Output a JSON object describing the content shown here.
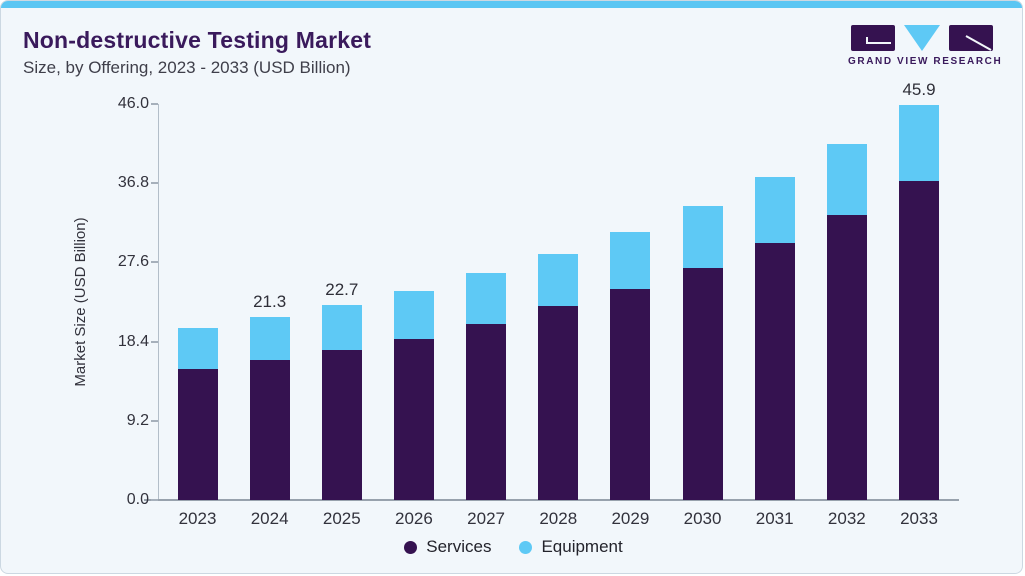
{
  "header": {
    "title": "Non-destructive Testing Market",
    "subtitle": "Size, by Offering, 2023 - 2033 (USD Billion)",
    "brand": "GRAND VIEW RESEARCH"
  },
  "colors": {
    "accent_blue": "#5bc6f3",
    "brand_purple": "#3a1a5c",
    "services_purple": "#351250",
    "equipment_blue": "#5ec9f5",
    "card_background": "#f2f7fb"
  },
  "chart_data": {
    "type": "bar",
    "stacked": true,
    "title": "Non-destructive Testing Market Size, by Offering, 2023 - 2033 (USD Billion)",
    "categories": [
      "2023",
      "2024",
      "2025",
      "2026",
      "2027",
      "2028",
      "2029",
      "2030",
      "2031",
      "2032",
      "2033"
    ],
    "series": [
      {
        "name": "Services",
        "color": "#351250",
        "values": [
          15.2,
          16.3,
          17.4,
          18.7,
          20.5,
          22.5,
          24.5,
          27.0,
          29.8,
          33.1,
          37.0
        ]
      },
      {
        "name": "Equipment",
        "color": "#5ec9f5",
        "values": [
          4.8,
          5.0,
          5.3,
          5.6,
          5.9,
          6.1,
          6.6,
          7.1,
          7.7,
          8.3,
          8.9
        ]
      }
    ],
    "totals": [
      20.0,
      21.3,
      22.7,
      24.3,
      26.4,
      28.6,
      31.1,
      34.1,
      37.5,
      41.4,
      45.9
    ],
    "bar_total_labels": [
      "",
      "21.3",
      "22.7",
      "",
      "",
      "",
      "",
      "",
      "",
      "",
      "45.9"
    ],
    "xlabel": "",
    "ylabel": "Market Size (USD Billion)",
    "ylim": [
      0,
      46.0
    ],
    "yticks": [
      "0.0",
      "9.2",
      "18.4",
      "27.6",
      "36.8",
      "46.0"
    ],
    "grid": false,
    "legend_position": "bottom"
  }
}
